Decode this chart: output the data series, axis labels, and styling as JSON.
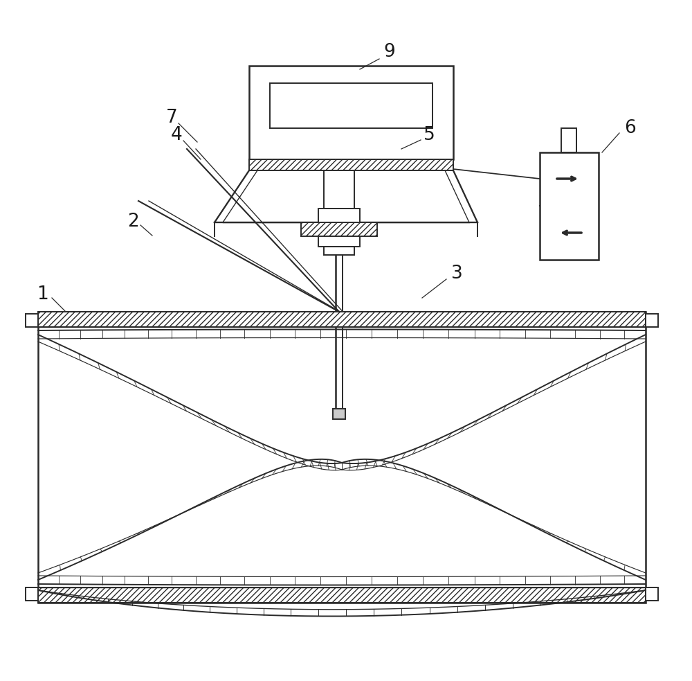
{
  "bg_color": "#ffffff",
  "lc": "#2a2a2a",
  "lw": 1.4,
  "fig_w": 10.0,
  "fig_h": 9.83,
  "dpi": 100
}
